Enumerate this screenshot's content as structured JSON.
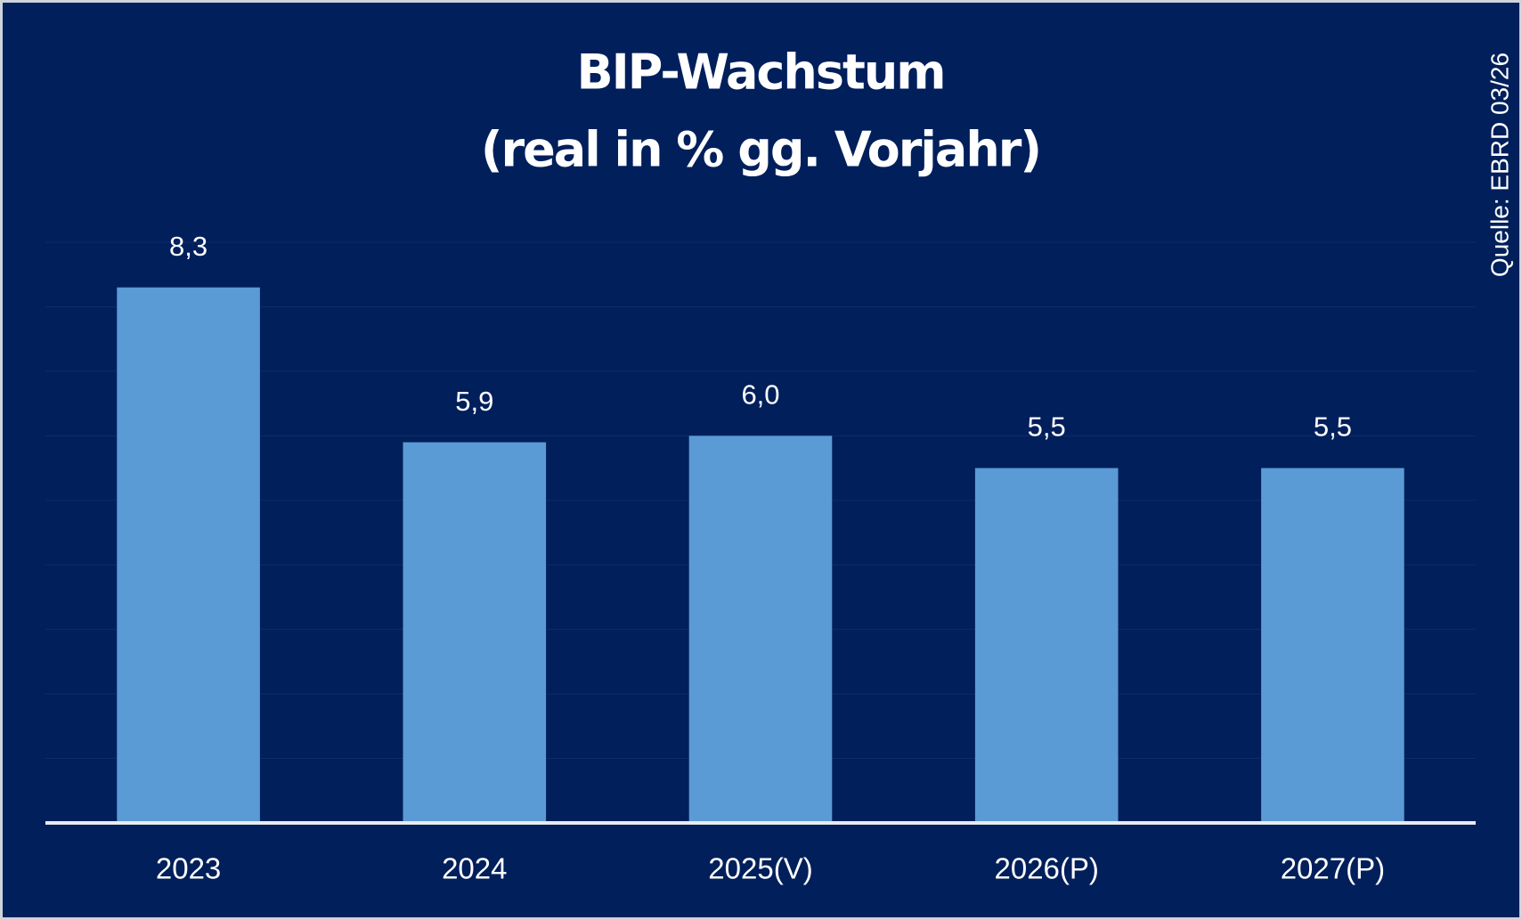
{
  "chart_data": {
    "type": "bar",
    "title": [
      "BIP-Wachstum",
      "(real in % gg. Vorjahr)"
    ],
    "source": "Quelle: EBRD 03/26",
    "categories": [
      "2023",
      "2024",
      "2025(V)",
      "2026(P)",
      "2027(P)"
    ],
    "values": [
      8.3,
      5.9,
      6.0,
      5.5,
      5.5
    ],
    "value_labels": [
      "8,3",
      "5,9",
      "6,0",
      "5,5",
      "5,5"
    ],
    "color": "#5b9bd5",
    "ylim": [
      0,
      9
    ],
    "yticks": [
      0,
      1,
      2,
      3,
      4,
      5,
      6,
      7,
      8,
      9
    ],
    "grid": true
  }
}
